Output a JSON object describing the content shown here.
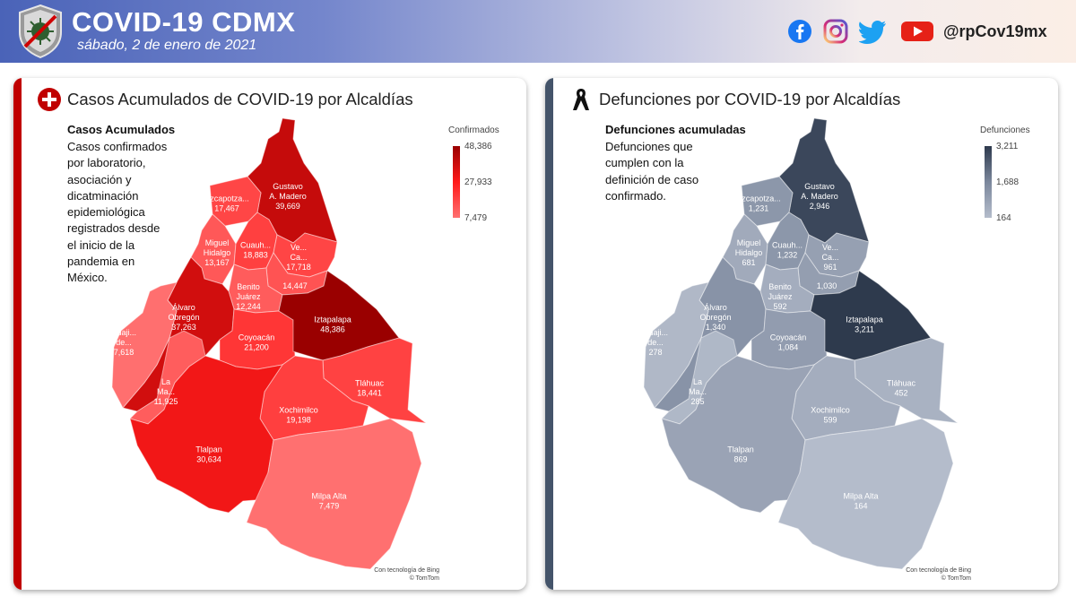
{
  "header": {
    "title": "COVID-19 CDMX",
    "date": "sábado, 2 de enero de 2021",
    "handle": "@rpCov19mx",
    "social_icons": [
      "facebook-icon",
      "instagram-icon",
      "twitter-icon",
      "youtube-icon"
    ],
    "gradient_colors": [
      "#4a63b8",
      "#fbeee6"
    ]
  },
  "cases_panel": {
    "title": "Casos Acumulados de COVID-19 por Alcaldías",
    "desc_heading": "Casos Acumulados",
    "desc_lines": [
      "Casos confirmados",
      "por laboratorio,",
      "asociación y",
      "dicatminación",
      "epidemiológica",
      "registrados desde",
      "el inicio de la",
      "pandemia en",
      "México."
    ],
    "legend_title": "Confirmados",
    "legend_max": "48,386",
    "legend_mid": "27,933",
    "legend_min": "7,479",
    "credit_1": "Con tecnología de Bing",
    "credit_2": "© TomTom",
    "accent": "#c00000",
    "scale": [
      "#ff7070",
      "#ff1a1a",
      "#9a0000"
    ]
  },
  "deaths_panel": {
    "title": "Defunciones por COVID-19 por Alcaldías",
    "desc_heading": "Defunciones acumuladas",
    "desc_lines": [
      "Defunciones que",
      "cumplen con la",
      "definición de caso",
      "confirmado."
    ],
    "legend_title": "Defunciones",
    "legend_max": "3,211",
    "legend_mid": "1,688",
    "legend_min": "164",
    "credit_1": "Con tecnología de Bing",
    "credit_2": "© TomTom",
    "accent": "#44546a",
    "scale": [
      "#b4bccb",
      "#7b879c",
      "#2e3a4d"
    ]
  },
  "map_data": {
    "alcaldias": [
      {
        "id": "gam",
        "name_lines": [
          "Gustavo",
          "A. Madero"
        ],
        "cases": "39,669",
        "cases_value": 39669,
        "deaths": "2,946",
        "deaths_value": 2946
      },
      {
        "id": "azc",
        "name_lines": [
          "Azcapotza..."
        ],
        "cases": "17,467",
        "cases_value": 17467,
        "deaths": "1,231",
        "deaths_value": 1231
      },
      {
        "id": "mh",
        "name_lines": [
          "Miguel",
          "Hidalgo"
        ],
        "cases": "13,167",
        "cases_value": 13167,
        "deaths": "681",
        "deaths_value": 681
      },
      {
        "id": "cuau",
        "name_lines": [
          "Cuauh..."
        ],
        "cases": "18,883",
        "cases_value": 18883,
        "deaths": "1,232",
        "deaths_value": 1232
      },
      {
        "id": "vc",
        "name_lines": [
          "Ve...",
          "Ca..."
        ],
        "cases": "17,718",
        "cases_value": 17718,
        "deaths": "961",
        "deaths_value": 961
      },
      {
        "id": "izc",
        "name_lines": [],
        "cases": "14,447",
        "cases_value": 14447,
        "deaths": "1,030",
        "deaths_value": 1030
      },
      {
        "id": "bj",
        "name_lines": [
          "Benito",
          "Juárez"
        ],
        "cases": "12,244",
        "cases_value": 12244,
        "deaths": "592",
        "deaths_value": 592
      },
      {
        "id": "ao",
        "name_lines": [
          "Álvaro",
          "Obregón"
        ],
        "cases": "37,263",
        "cases_value": 37263,
        "deaths": "1,340",
        "deaths_value": 1340
      },
      {
        "id": "cuaj",
        "name_lines": [
          "Cuaji...",
          "de..."
        ],
        "cases": "7,618",
        "cases_value": 7618,
        "deaths": "278",
        "deaths_value": 278
      },
      {
        "id": "mc",
        "name_lines": [
          "La",
          "Ma..."
        ],
        "cases": "11,925",
        "cases_value": 11925,
        "deaths": "285",
        "deaths_value": 285
      },
      {
        "id": "coy",
        "name_lines": [
          "Coyoacán"
        ],
        "cases": "21,200",
        "cases_value": 21200,
        "deaths": "1,084",
        "deaths_value": 1084
      },
      {
        "id": "izt",
        "name_lines": [
          "Iztapalapa"
        ],
        "cases": "48,386",
        "cases_value": 48386,
        "deaths": "3,211",
        "deaths_value": 3211
      },
      {
        "id": "tlh",
        "name_lines": [
          "Tláhuac"
        ],
        "cases": "18,441",
        "cases_value": 18441,
        "deaths": "452",
        "deaths_value": 452
      },
      {
        "id": "xoc",
        "name_lines": [
          "Xochimilco"
        ],
        "cases": "19,198",
        "cases_value": 19198,
        "deaths": "599",
        "deaths_value": 599
      },
      {
        "id": "tlp",
        "name_lines": [
          "Tlalpan"
        ],
        "cases": "30,634",
        "cases_value": 30634,
        "deaths": "869",
        "deaths_value": 869
      },
      {
        "id": "ma",
        "name_lines": [
          "Milpa Alta"
        ],
        "cases": "7,479",
        "cases_value": 7479,
        "deaths": "164",
        "deaths_value": 164
      }
    ]
  }
}
